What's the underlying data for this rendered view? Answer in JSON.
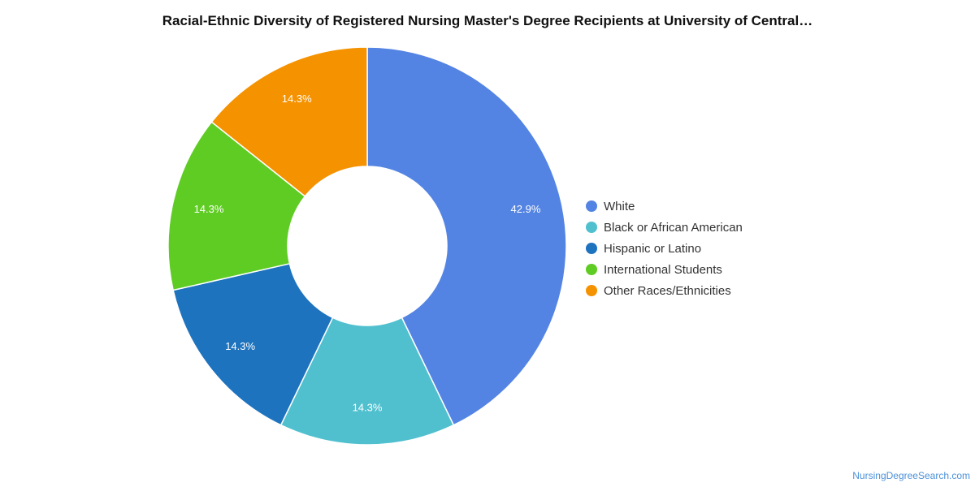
{
  "chart_data": {
    "type": "pie",
    "style": "donut",
    "title": "Racial-Ethnic Diversity of Registered Nursing Master's Degree Recipients at University of Central…",
    "categories": [
      "White",
      "Black or African American",
      "Hispanic or Latino",
      "International Students",
      "Other Races/Ethnicities"
    ],
    "values": [
      42.9,
      14.3,
      14.3,
      14.3,
      14.3
    ],
    "labels": [
      "42.9%",
      "14.3%",
      "14.3%",
      "14.3%",
      "14.3%"
    ],
    "colors": [
      "#5484e3",
      "#50c0cf",
      "#1e73bf",
      "#5fcc23",
      "#f59200"
    ],
    "legend_position": "right"
  },
  "footer": {
    "source_link": "NursingDegreeSearch.com"
  }
}
